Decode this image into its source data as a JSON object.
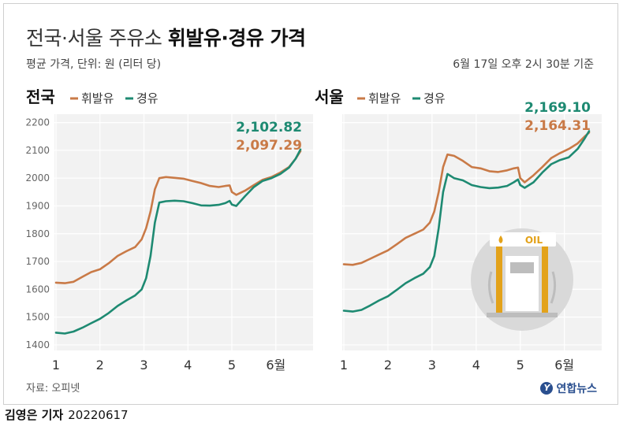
{
  "header": {
    "title_light": "전국·서울 주유소 ",
    "title_bold": "휘발유·경유 가격",
    "subtitle": "평균 가격, 단위: 원 (리터 당)",
    "as_of": "6월 17일 오후 2시 30분 기준"
  },
  "footer": {
    "source": "자료: 오피넷",
    "logo": "연합뉴스",
    "reporter": "김영은 기자",
    "code": "20220617"
  },
  "colors": {
    "gasoline": "#c97a47",
    "diesel": "#1e8a72",
    "grid": "#e9e9e9",
    "panel": "#f2f2f2"
  },
  "icon": {
    "name": "gas-station-icon",
    "label": "OIL"
  },
  "chart_data": [
    {
      "type": "line",
      "title": "전국",
      "legend": [
        "휘발유",
        "경유"
      ],
      "x_ticks": [
        {
          "x": 1,
          "label": "1"
        },
        {
          "x": 2,
          "label": "2"
        },
        {
          "x": 3,
          "label": "3"
        },
        {
          "x": 4,
          "label": "4"
        },
        {
          "x": 5,
          "label": "5"
        },
        {
          "x": 6,
          "label": "6월"
        }
      ],
      "y_ticks": [
        1400,
        1500,
        1600,
        1700,
        1800,
        1900,
        2000,
        2100,
        2200
      ],
      "ylim": [
        1380,
        2230
      ],
      "xlim": [
        1,
        6.56
      ],
      "series": [
        {
          "name": "휘발유",
          "end_label": "2,097.29",
          "points": [
            [
              1,
              1624
            ],
            [
              1.2,
              1622
            ],
            [
              1.4,
              1627
            ],
            [
              1.6,
              1645
            ],
            [
              1.8,
              1662
            ],
            [
              2,
              1672
            ],
            [
              2.2,
              1694
            ],
            [
              2.4,
              1720
            ],
            [
              2.6,
              1737
            ],
            [
              2.8,
              1752
            ],
            [
              2.95,
              1780
            ],
            [
              3.05,
              1820
            ],
            [
              3.15,
              1880
            ],
            [
              3.25,
              1960
            ],
            [
              3.35,
              2000
            ],
            [
              3.5,
              2004
            ],
            [
              3.7,
              2001
            ],
            [
              3.9,
              1998
            ],
            [
              4.1,
              1990
            ],
            [
              4.3,
              1982
            ],
            [
              4.5,
              1972
            ],
            [
              4.7,
              1968
            ],
            [
              4.85,
              1972
            ],
            [
              4.95,
              1974
            ],
            [
              5.0,
              1950
            ],
            [
              5.1,
              1940
            ],
            [
              5.3,
              1955
            ],
            [
              5.5,
              1975
            ],
            [
              5.7,
              1994
            ],
            [
              5.9,
              2004
            ],
            [
              6.1,
              2020
            ],
            [
              6.3,
              2040
            ],
            [
              6.45,
              2070
            ],
            [
              6.56,
              2097
            ]
          ]
        },
        {
          "name": "경유",
          "end_label": "2,102.82",
          "points": [
            [
              1,
              1444
            ],
            [
              1.2,
              1441
            ],
            [
              1.4,
              1448
            ],
            [
              1.6,
              1462
            ],
            [
              1.8,
              1478
            ],
            [
              2,
              1494
            ],
            [
              2.2,
              1515
            ],
            [
              2.4,
              1540
            ],
            [
              2.6,
              1560
            ],
            [
              2.8,
              1578
            ],
            [
              2.95,
              1600
            ],
            [
              3.05,
              1640
            ],
            [
              3.15,
              1720
            ],
            [
              3.25,
              1840
            ],
            [
              3.35,
              1912
            ],
            [
              3.5,
              1917
            ],
            [
              3.7,
              1919
            ],
            [
              3.9,
              1917
            ],
            [
              4.1,
              1910
            ],
            [
              4.3,
              1902
            ],
            [
              4.5,
              1901
            ],
            [
              4.7,
              1904
            ],
            [
              4.85,
              1910
            ],
            [
              4.95,
              1918
            ],
            [
              5.0,
              1905
            ],
            [
              5.1,
              1900
            ],
            [
              5.3,
              1935
            ],
            [
              5.5,
              1968
            ],
            [
              5.7,
              1990
            ],
            [
              5.9,
              2000
            ],
            [
              6.1,
              2015
            ],
            [
              6.3,
              2038
            ],
            [
              6.45,
              2070
            ],
            [
              6.56,
              2103
            ]
          ]
        }
      ]
    },
    {
      "type": "line",
      "title": "서울",
      "legend": [
        "휘발유",
        "경유"
      ],
      "x_ticks": [
        {
          "x": 1,
          "label": "1"
        },
        {
          "x": 2,
          "label": "2"
        },
        {
          "x": 3,
          "label": "3"
        },
        {
          "x": 4,
          "label": "4"
        },
        {
          "x": 5,
          "label": "5"
        },
        {
          "x": 6,
          "label": "6월"
        }
      ],
      "y_ticks": [
        1400,
        1500,
        1600,
        1700,
        1800,
        1900,
        2000,
        2100,
        2200
      ],
      "ylim": [
        1380,
        2230
      ],
      "xlim": [
        1,
        6.56
      ],
      "series": [
        {
          "name": "휘발유",
          "end_label": "2,164.31",
          "points": [
            [
              1,
              1690
            ],
            [
              1.2,
              1688
            ],
            [
              1.4,
              1695
            ],
            [
              1.6,
              1710
            ],
            [
              1.8,
              1725
            ],
            [
              2,
              1740
            ],
            [
              2.2,
              1762
            ],
            [
              2.4,
              1785
            ],
            [
              2.6,
              1800
            ],
            [
              2.8,
              1815
            ],
            [
              2.95,
              1840
            ],
            [
              3.05,
              1880
            ],
            [
              3.15,
              1950
            ],
            [
              3.25,
              2040
            ],
            [
              3.35,
              2085
            ],
            [
              3.5,
              2080
            ],
            [
              3.7,
              2062
            ],
            [
              3.9,
              2040
            ],
            [
              4.1,
              2035
            ],
            [
              4.3,
              2025
            ],
            [
              4.5,
              2022
            ],
            [
              4.7,
              2028
            ],
            [
              4.85,
              2035
            ],
            [
              4.95,
              2038
            ],
            [
              5.0,
              2000
            ],
            [
              5.1,
              1985
            ],
            [
              5.3,
              2010
            ],
            [
              5.5,
              2040
            ],
            [
              5.7,
              2072
            ],
            [
              5.9,
              2090
            ],
            [
              6.1,
              2105
            ],
            [
              6.3,
              2125
            ],
            [
              6.45,
              2148
            ],
            [
              6.56,
              2164
            ]
          ]
        },
        {
          "name": "경유",
          "end_label": "2,169.10",
          "points": [
            [
              1,
              1523
            ],
            [
              1.2,
              1520
            ],
            [
              1.4,
              1526
            ],
            [
              1.6,
              1542
            ],
            [
              1.8,
              1560
            ],
            [
              2,
              1575
            ],
            [
              2.2,
              1598
            ],
            [
              2.4,
              1622
            ],
            [
              2.6,
              1640
            ],
            [
              2.8,
              1656
            ],
            [
              2.95,
              1680
            ],
            [
              3.05,
              1720
            ],
            [
              3.15,
              1820
            ],
            [
              3.25,
              1950
            ],
            [
              3.35,
              2015
            ],
            [
              3.5,
              2000
            ],
            [
              3.7,
              1992
            ],
            [
              3.9,
              1975
            ],
            [
              4.1,
              1968
            ],
            [
              4.3,
              1964
            ],
            [
              4.5,
              1966
            ],
            [
              4.7,
              1972
            ],
            [
              4.85,
              1985
            ],
            [
              4.95,
              1995
            ],
            [
              5.0,
              1975
            ],
            [
              5.1,
              1965
            ],
            [
              5.3,
              1985
            ],
            [
              5.5,
              2020
            ],
            [
              5.7,
              2050
            ],
            [
              5.9,
              2065
            ],
            [
              6.1,
              2075
            ],
            [
              6.3,
              2105
            ],
            [
              6.45,
              2140
            ],
            [
              6.56,
              2169
            ]
          ]
        }
      ]
    }
  ]
}
